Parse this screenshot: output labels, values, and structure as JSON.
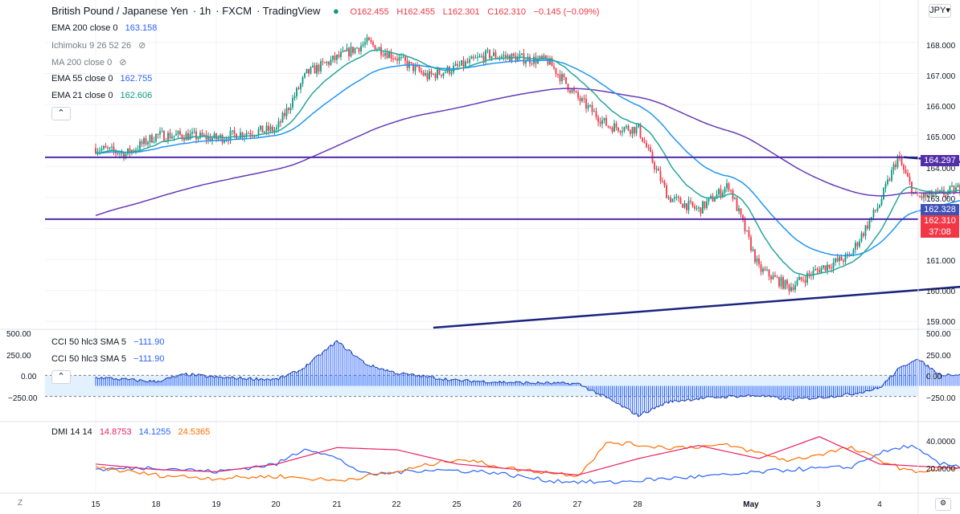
{
  "header": {
    "symbol": "British Pound / Japanese Yen",
    "interval": "1h",
    "source": "FXCM",
    "platform": "TradingView",
    "ohlc": {
      "o": "O162.455",
      "h": "H162.455",
      "l": "L162.301",
      "c": "C162.310",
      "chg": "−0.145 (−0.09%)"
    }
  },
  "legend": [
    {
      "name": "EMA 200 close 0",
      "value": "163.158",
      "color": "#2962ff"
    },
    {
      "name": "Ichimoku 9 26 52 26",
      "value": "",
      "color": "#787b86"
    },
    {
      "name": "MA 200 close 0",
      "value": "",
      "color": "#787b86"
    },
    {
      "name": "EMA 55 close 0",
      "value": "162.755",
      "color": "#2962ff"
    },
    {
      "name": "EMA 21 close 0",
      "value": "162.606",
      "color": "#089981"
    }
  ],
  "currency": "JPY",
  "price_axis": [
    "168.000",
    "167.000",
    "166.000",
    "165.000",
    "164.000",
    "163.000",
    "161.000",
    "160.000",
    "159.000"
  ],
  "price_labels": {
    "level_high": "164.297",
    "ema_value": "162.328",
    "last_price": "162.310",
    "countdown": "37:08"
  },
  "time_axis": [
    "15",
    "18",
    "19",
    "20",
    "21",
    "22",
    "25",
    "26",
    "27",
    "28",
    "May",
    "3",
    "4"
  ],
  "cci": {
    "label1": "CCI 50 hlc3 SMA 5",
    "value1": "−111.90",
    "label2": "CCI 50 hlc3 SMA 5",
    "value2": "−111.90",
    "axis": [
      "500.00",
      "250.00",
      "0.00",
      "−250.00"
    ]
  },
  "dmi": {
    "label": "DMI 14 14",
    "plus": "14.8753",
    "minus": "14.1255",
    "adx": "24.5365",
    "axis": [
      "40.0000",
      "20.0000"
    ]
  },
  "colors": {
    "up": "#089981",
    "down": "#f23645",
    "ema200": "#2962ff",
    "ma200": "#673ab7",
    "ema55": "#2196f3",
    "ema21": "#26a69a",
    "level": "#512da8",
    "trend": "#1a237e",
    "cci": "#2962ff",
    "dmi_plus": "#2962ff",
    "dmi_minus": "#ff6d00",
    "adx": "#e91e63"
  },
  "chart_data": [
    {
      "type": "candlestick",
      "title": "British Pound / Japanese Yen · 1h · FXCM",
      "y_unit": "JPY",
      "ylim": [
        158.8,
        168.8
      ],
      "x_sessions": [
        "15",
        "18",
        "19",
        "20",
        "21",
        "22",
        "25",
        "26",
        "27",
        "28",
        "May",
        "3",
        "4"
      ],
      "close_path": [
        {
          "session": 0.0,
          "price": 164.6
        },
        {
          "session": 0.5,
          "price": 164.4
        },
        {
          "session": 1.0,
          "price": 165.0
        },
        {
          "session": 1.5,
          "price": 165.0
        },
        {
          "session": 2.0,
          "price": 164.9
        },
        {
          "session": 2.5,
          "price": 165.1
        },
        {
          "session": 3.0,
          "price": 165.2
        },
        {
          "session": 3.5,
          "price": 167.0
        },
        {
          "session": 4.0,
          "price": 167.5
        },
        {
          "session": 4.5,
          "price": 168.0
        },
        {
          "session": 5.0,
          "price": 167.5
        },
        {
          "session": 5.5,
          "price": 166.9
        },
        {
          "session": 6.0,
          "price": 167.2
        },
        {
          "session": 6.5,
          "price": 167.6
        },
        {
          "session": 7.0,
          "price": 167.5
        },
        {
          "session": 7.5,
          "price": 167.4
        },
        {
          "session": 8.0,
          "price": 166.2
        },
        {
          "session": 8.5,
          "price": 165.3
        },
        {
          "session": 9.0,
          "price": 165.2
        },
        {
          "session": 9.5,
          "price": 163.0
        },
        {
          "session": 10.0,
          "price": 162.6
        },
        {
          "session": 10.5,
          "price": 163.4
        },
        {
          "session": 11.0,
          "price": 160.7
        },
        {
          "session": 11.5,
          "price": 160.1
        },
        {
          "session": 12.0,
          "price": 160.7
        },
        {
          "session": 12.5,
          "price": 161.1
        },
        {
          "session": 13.0,
          "price": 162.8
        },
        {
          "session": 13.3,
          "price": 164.3
        },
        {
          "session": 13.6,
          "price": 163.0
        },
        {
          "session": 14.0,
          "price": 163.1
        },
        {
          "session": 14.5,
          "price": 163.4
        },
        {
          "session": 15.0,
          "price": 163.4
        },
        {
          "session": 15.5,
          "price": 162.9
        },
        {
          "session": 16.0,
          "price": 162.5
        },
        {
          "session": 16.5,
          "price": 162.8
        },
        {
          "session": 17.0,
          "price": 162.9
        },
        {
          "session": 17.5,
          "price": 162.6
        },
        {
          "session": 17.9,
          "price": 162.3
        }
      ],
      "horizontal_levels": [
        164.297,
        162.3
      ],
      "trendlines": [
        {
          "from": {
            "session": 13.4,
            "price": 164.3
          },
          "to": {
            "session": 19.2,
            "price": 163.35
          }
        },
        {
          "from": {
            "session": 5.6,
            "price": 158.8
          },
          "to": {
            "session": 19.2,
            "price": 160.85
          }
        }
      ]
    },
    {
      "type": "bar",
      "title": "CCI 50 hlc3 SMA 5",
      "ylim": [
        -300,
        520
      ],
      "bands": [
        100,
        -100
      ],
      "path": [
        {
          "session": 0.0,
          "value": 80
        },
        {
          "session": 1.0,
          "value": 40
        },
        {
          "session": 1.5,
          "value": 110
        },
        {
          "session": 2.0,
          "value": 80
        },
        {
          "session": 3.0,
          "value": 60
        },
        {
          "session": 3.4,
          "value": 150
        },
        {
          "session": 4.0,
          "value": 420
        },
        {
          "session": 4.5,
          "value": 200
        },
        {
          "session": 5.0,
          "value": 120
        },
        {
          "session": 6.0,
          "value": 50
        },
        {
          "session": 7.0,
          "value": 30
        },
        {
          "session": 8.0,
          "value": 20
        },
        {
          "session": 8.5,
          "value": -120
        },
        {
          "session": 9.0,
          "value": -280
        },
        {
          "session": 9.5,
          "value": -150
        },
        {
          "session": 10.0,
          "value": -120
        },
        {
          "session": 10.5,
          "value": -100
        },
        {
          "session": 11.0,
          "value": -90
        },
        {
          "session": 11.5,
          "value": -130
        },
        {
          "session": 12.0,
          "value": -110
        },
        {
          "session": 12.5,
          "value": -80
        },
        {
          "session": 13.0,
          "value": -20
        },
        {
          "session": 13.3,
          "value": 150
        },
        {
          "session": 13.6,
          "value": 260
        },
        {
          "session": 14.0,
          "value": 110
        },
        {
          "session": 15.0,
          "value": 100
        },
        {
          "session": 16.0,
          "value": 90
        },
        {
          "session": 16.4,
          "value": -120
        },
        {
          "session": 16.7,
          "value": -240
        },
        {
          "session": 17.0,
          "value": -100
        },
        {
          "session": 17.5,
          "value": -40
        },
        {
          "session": 17.9,
          "value": -112
        }
      ]
    },
    {
      "type": "line",
      "title": "DMI 14 14",
      "ylim": [
        0,
        60
      ],
      "series": [
        {
          "name": "DMI 14 14",
          "values": [
            {
              "session": 0.0,
              "value": 20
            },
            {
              "session": 1.0,
              "value": 22
            },
            {
              "session": 2.0,
              "value": 18
            },
            {
              "session": 3.0,
              "value": 25
            },
            {
              "session": 3.5,
              "value": 40
            },
            {
              "session": 4.0,
              "value": 30
            },
            {
              "session": 4.5,
              "value": 15
            },
            {
              "session": 5.5,
              "value": 20
            },
            {
              "session": 6.5,
              "value": 18
            },
            {
              "session": 7.5,
              "value": 10
            },
            {
              "session": 8.5,
              "value": 8
            },
            {
              "session": 9.5,
              "value": 12
            },
            {
              "session": 10.5,
              "value": 15
            },
            {
              "session": 11.5,
              "value": 20
            },
            {
              "session": 12.5,
              "value": 22
            },
            {
              "session": 13.0,
              "value": 35
            },
            {
              "session": 13.5,
              "value": 42
            },
            {
              "session": 14.0,
              "value": 25
            },
            {
              "session": 15.0,
              "value": 20
            },
            {
              "session": 16.0,
              "value": 15
            },
            {
              "session": 17.0,
              "value": 18
            },
            {
              "session": 17.9,
              "value": 14.1
            }
          ]
        },
        {
          "name": "DMI 14 14",
          "values": [
            {
              "session": 0.0,
              "value": 22
            },
            {
              "session": 1.0,
              "value": 15
            },
            {
              "session": 2.0,
              "value": 12
            },
            {
              "session": 3.0,
              "value": 14
            },
            {
              "session": 3.5,
              "value": 12
            },
            {
              "session": 4.0,
              "value": 10
            },
            {
              "session": 5.0,
              "value": 18
            },
            {
              "session": 6.0,
              "value": 30
            },
            {
              "session": 7.0,
              "value": 20
            },
            {
              "session": 8.0,
              "value": 15
            },
            {
              "session": 8.5,
              "value": 45
            },
            {
              "session": 9.5,
              "value": 40
            },
            {
              "session": 10.5,
              "value": 42
            },
            {
              "session": 11.5,
              "value": 28
            },
            {
              "session": 12.5,
              "value": 40
            },
            {
              "session": 13.5,
              "value": 18
            },
            {
              "session": 14.5,
              "value": 22
            },
            {
              "session": 15.5,
              "value": 18
            },
            {
              "session": 16.5,
              "value": 30
            },
            {
              "session": 17.5,
              "value": 20
            },
            {
              "session": 17.9,
              "value": 24.5
            }
          ]
        },
        {
          "name": "DMI 14 14",
          "values": [
            {
              "session": 0.0,
              "value": 25
            },
            {
              "session": 1.0,
              "value": 20
            },
            {
              "session": 2.0,
              "value": 18
            },
            {
              "session": 3.0,
              "value": 25
            },
            {
              "session": 4.0,
              "value": 40
            },
            {
              "session": 5.0,
              "value": 38
            },
            {
              "session": 6.0,
              "value": 25
            },
            {
              "session": 7.0,
              "value": 20
            },
            {
              "session": 8.0,
              "value": 15
            },
            {
              "session": 9.0,
              "value": 30
            },
            {
              "session": 10.0,
              "value": 42
            },
            {
              "session": 11.0,
              "value": 30
            },
            {
              "session": 12.0,
              "value": 50
            },
            {
              "session": 13.0,
              "value": 25
            },
            {
              "session": 14.0,
              "value": 22
            },
            {
              "session": 15.0,
              "value": 20
            },
            {
              "session": 16.0,
              "value": 18
            },
            {
              "session": 17.0,
              "value": 15
            },
            {
              "session": 17.9,
              "value": 14.9
            }
          ]
        }
      ]
    }
  ]
}
